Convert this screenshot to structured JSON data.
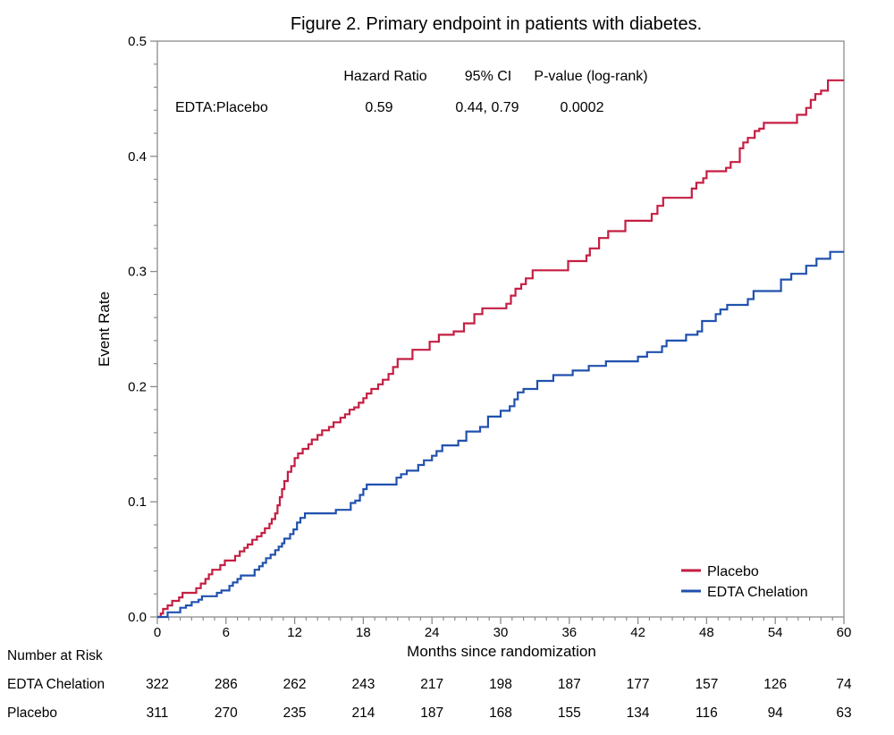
{
  "figure": {
    "title": "Figure 2.  Primary endpoint in patients with diabetes."
  },
  "stats_table": {
    "columns": [
      "Hazard Ratio",
      "95% CI",
      "P-value (log-rank)"
    ],
    "row": {
      "label": "EDTA:Placebo",
      "hazard_ratio": "0.59",
      "ci": "0.44, 0.79",
      "p_value": "0.0002"
    }
  },
  "legend": {
    "items": [
      {
        "label": "Placebo",
        "color": "#C41E42"
      },
      {
        "label": "EDTA Chelation",
        "color": "#2051AE"
      }
    ]
  },
  "risk_table": {
    "heading": "Number at Risk",
    "months": [
      0,
      6,
      12,
      18,
      24,
      30,
      36,
      42,
      48,
      54,
      60
    ],
    "rows": [
      {
        "label": "EDTA Chelation",
        "counts": [
          "322",
          "286",
          "262",
          "243",
          "217",
          "198",
          "187",
          "177",
          "157",
          "126",
          "74"
        ]
      },
      {
        "label": "Placebo",
        "counts": [
          "311",
          "270",
          "235",
          "214",
          "187",
          "168",
          "155",
          "134",
          "116",
          "94",
          "63"
        ]
      }
    ]
  },
  "colors": {
    "axis": "#8C8C8C",
    "text": "#000000",
    "background": "#FFFFFF"
  },
  "chart_data": {
    "type": "line",
    "subtype": "kaplan-meier-step",
    "title": "Figure 2.  Primary endpoint in patients with diabetes.",
    "xlabel": "Months since randomization",
    "ylabel": "Event Rate",
    "xlim": [
      0,
      60
    ],
    "ylim": [
      0,
      0.5
    ],
    "x_major_ticks": [
      0,
      6,
      12,
      18,
      24,
      30,
      36,
      42,
      48,
      54,
      60
    ],
    "x_minor_step": 1,
    "y_major_ticks": [
      0.0,
      0.1,
      0.2,
      0.3,
      0.4,
      0.5
    ],
    "y_tick_labels": [
      "0.0",
      "0.1",
      "0.2",
      "0.3",
      "0.4",
      "0.5"
    ],
    "y_minor_step": 0.02,
    "grid": false,
    "legend_position": "inside-bottom-right",
    "series": [
      {
        "name": "Placebo",
        "color": "#C41E42",
        "points": [
          [
            0,
            0
          ],
          [
            0.3,
            0.003
          ],
          [
            0.5,
            0.007
          ],
          [
            0.9,
            0.01
          ],
          [
            1.3,
            0.014
          ],
          [
            1.9,
            0.017
          ],
          [
            2.2,
            0.021
          ],
          [
            3.4,
            0.025
          ],
          [
            3.8,
            0.029
          ],
          [
            4.2,
            0.033
          ],
          [
            4.5,
            0.037
          ],
          [
            4.8,
            0.041
          ],
          [
            5.5,
            0.045
          ],
          [
            5.9,
            0.049
          ],
          [
            6.8,
            0.053
          ],
          [
            7.2,
            0.057
          ],
          [
            7.6,
            0.06
          ],
          [
            7.9,
            0.063
          ],
          [
            8.3,
            0.067
          ],
          [
            8.7,
            0.07
          ],
          [
            9.1,
            0.073
          ],
          [
            9.4,
            0.077
          ],
          [
            9.8,
            0.081
          ],
          [
            10.0,
            0.085
          ],
          [
            10.3,
            0.09
          ],
          [
            10.5,
            0.097
          ],
          [
            10.7,
            0.104
          ],
          [
            10.9,
            0.111
          ],
          [
            11.1,
            0.118
          ],
          [
            11.4,
            0.126
          ],
          [
            11.7,
            0.131
          ],
          [
            12.0,
            0.138
          ],
          [
            12.3,
            0.142
          ],
          [
            12.7,
            0.146
          ],
          [
            13.2,
            0.15
          ],
          [
            13.5,
            0.154
          ],
          [
            14.0,
            0.158
          ],
          [
            14.4,
            0.162
          ],
          [
            15.0,
            0.165
          ],
          [
            15.4,
            0.169
          ],
          [
            16.0,
            0.173
          ],
          [
            16.4,
            0.176
          ],
          [
            16.8,
            0.18
          ],
          [
            17.2,
            0.182
          ],
          [
            17.6,
            0.186
          ],
          [
            18.0,
            0.19
          ],
          [
            18.3,
            0.194
          ],
          [
            18.7,
            0.198
          ],
          [
            19.3,
            0.202
          ],
          [
            19.7,
            0.206
          ],
          [
            20.2,
            0.211
          ],
          [
            20.6,
            0.217
          ],
          [
            21.0,
            0.224
          ],
          [
            22.3,
            0.232
          ],
          [
            23.8,
            0.239
          ],
          [
            24.6,
            0.245
          ],
          [
            25.9,
            0.248
          ],
          [
            26.8,
            0.255
          ],
          [
            27.7,
            0.263
          ],
          [
            28.4,
            0.268
          ],
          [
            30.5,
            0.272
          ],
          [
            30.9,
            0.279
          ],
          [
            31.3,
            0.285
          ],
          [
            31.8,
            0.289
          ],
          [
            32.2,
            0.294
          ],
          [
            32.8,
            0.301
          ],
          [
            35.9,
            0.309
          ],
          [
            37.5,
            0.314
          ],
          [
            37.8,
            0.32
          ],
          [
            38.6,
            0.329
          ],
          [
            39.4,
            0.335
          ],
          [
            40.9,
            0.344
          ],
          [
            43.2,
            0.35
          ],
          [
            43.7,
            0.357
          ],
          [
            44.2,
            0.364
          ],
          [
            46.7,
            0.372
          ],
          [
            47.1,
            0.377
          ],
          [
            47.7,
            0.381
          ],
          [
            48.0,
            0.387
          ],
          [
            49.7,
            0.39
          ],
          [
            50.1,
            0.395
          ],
          [
            50.9,
            0.407
          ],
          [
            51.2,
            0.412
          ],
          [
            51.6,
            0.416
          ],
          [
            52.2,
            0.422
          ],
          [
            52.6,
            0.424
          ],
          [
            53.0,
            0.429
          ],
          [
            55.9,
            0.436
          ],
          [
            56.7,
            0.442
          ],
          [
            57.1,
            0.449
          ],
          [
            57.5,
            0.454
          ],
          [
            58.0,
            0.457
          ],
          [
            58.6,
            0.466
          ],
          [
            60,
            0.466
          ]
        ]
      },
      {
        "name": "EDTA Chelation",
        "color": "#2051AE",
        "points": [
          [
            0,
            0
          ],
          [
            0.9,
            0.004
          ],
          [
            2.0,
            0.008
          ],
          [
            2.5,
            0.01
          ],
          [
            3.0,
            0.013
          ],
          [
            3.6,
            0.015
          ],
          [
            3.9,
            0.018
          ],
          [
            5.2,
            0.021
          ],
          [
            5.6,
            0.023
          ],
          [
            6.3,
            0.027
          ],
          [
            6.6,
            0.03
          ],
          [
            7.0,
            0.033
          ],
          [
            7.3,
            0.036
          ],
          [
            8.5,
            0.041
          ],
          [
            8.9,
            0.044
          ],
          [
            9.2,
            0.047
          ],
          [
            9.5,
            0.051
          ],
          [
            9.9,
            0.054
          ],
          [
            10.3,
            0.058
          ],
          [
            10.6,
            0.061
          ],
          [
            10.9,
            0.064
          ],
          [
            11.1,
            0.068
          ],
          [
            11.6,
            0.072
          ],
          [
            11.9,
            0.076
          ],
          [
            12.2,
            0.082
          ],
          [
            12.5,
            0.086
          ],
          [
            12.9,
            0.09
          ],
          [
            15.6,
            0.093
          ],
          [
            16.9,
            0.099
          ],
          [
            17.3,
            0.101
          ],
          [
            17.7,
            0.106
          ],
          [
            18.0,
            0.111
          ],
          [
            18.3,
            0.115
          ],
          [
            20.9,
            0.121
          ],
          [
            21.3,
            0.124
          ],
          [
            21.8,
            0.127
          ],
          [
            22.8,
            0.132
          ],
          [
            23.3,
            0.136
          ],
          [
            24.0,
            0.14
          ],
          [
            24.4,
            0.144
          ],
          [
            24.9,
            0.149
          ],
          [
            26.3,
            0.153
          ],
          [
            27.0,
            0.161
          ],
          [
            28.2,
            0.165
          ],
          [
            28.9,
            0.174
          ],
          [
            30.0,
            0.179
          ],
          [
            30.8,
            0.183
          ],
          [
            31.2,
            0.189
          ],
          [
            31.5,
            0.195
          ],
          [
            32.0,
            0.198
          ],
          [
            33.2,
            0.205
          ],
          [
            34.6,
            0.21
          ],
          [
            36.3,
            0.214
          ],
          [
            37.7,
            0.218
          ],
          [
            39.2,
            0.222
          ],
          [
            42.0,
            0.226
          ],
          [
            42.8,
            0.23
          ],
          [
            44.1,
            0.235
          ],
          [
            44.5,
            0.24
          ],
          [
            46.2,
            0.245
          ],
          [
            47.2,
            0.248
          ],
          [
            47.6,
            0.257
          ],
          [
            48.8,
            0.263
          ],
          [
            49.2,
            0.267
          ],
          [
            49.8,
            0.271
          ],
          [
            51.6,
            0.276
          ],
          [
            52.1,
            0.283
          ],
          [
            54.5,
            0.293
          ],
          [
            55.4,
            0.298
          ],
          [
            56.7,
            0.305
          ],
          [
            57.6,
            0.311
          ],
          [
            58.8,
            0.317
          ],
          [
            60,
            0.317
          ]
        ]
      }
    ]
  }
}
